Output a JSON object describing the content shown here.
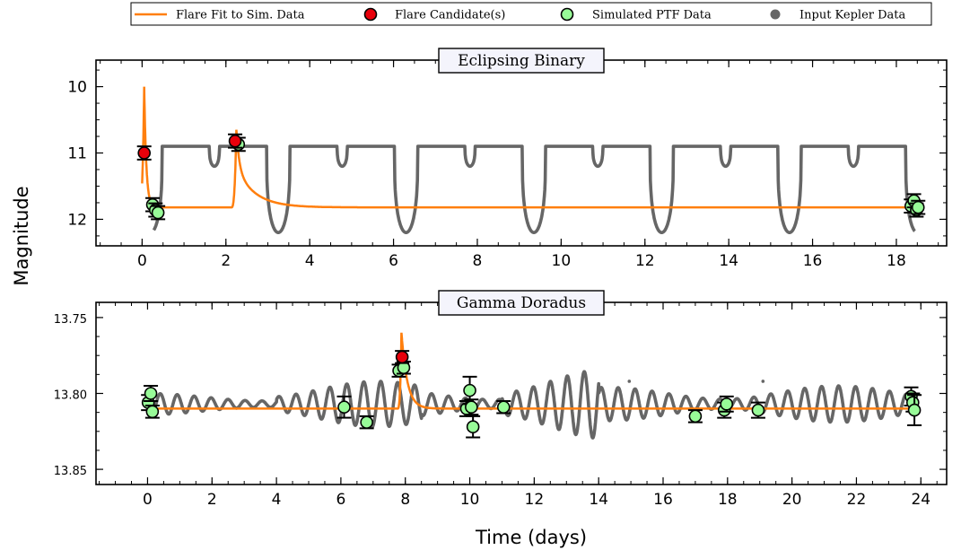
{
  "legend": {
    "items": [
      {
        "label": "Flare Fit to Sim. Data",
        "kind": "line",
        "color": "#ff7f0e"
      },
      {
        "label": "Flare Candidate(s)",
        "kind": "marker",
        "color": "#e8000b"
      },
      {
        "label": "Simulated PTF Data",
        "kind": "marker",
        "color": "#98fb98"
      },
      {
        "label": "Input Kepler Data",
        "kind": "dot",
        "color": "#666666"
      }
    ]
  },
  "colors": {
    "kepler": "#666666",
    "fit": "#ff7f0e",
    "candidate": "#e8000b",
    "ptf": "#98fb98",
    "errorbar": "#000000"
  },
  "shared": {
    "xlabel": "Time (days)",
    "ylabel": "Magnitude"
  },
  "chart_data": [
    {
      "type": "line",
      "title": "Eclipsing Binary",
      "ylim": [
        12.4,
        9.6
      ],
      "xlim": [
        -1.1,
        19.2
      ],
      "xticks": [
        0,
        2,
        4,
        6,
        8,
        10,
        12,
        14,
        16,
        18
      ],
      "xtick_labels": [
        "0",
        "2",
        "4",
        "6",
        "8",
        "10",
        "12",
        "14",
        "16",
        "18"
      ],
      "yticks": [
        10,
        11,
        12
      ],
      "ytick_labels": [
        "10",
        "11",
        "12"
      ],
      "kepler": {
        "baseline": 10.9,
        "period": 3.05,
        "first_primary": 3.25,
        "primary_depth": 12.2,
        "secondary_depth": 11.2,
        "primary_half_width": 0.28,
        "secondary_half_width": 0.12
      },
      "fit": {
        "quiescent": 11.82,
        "flares": [
          {
            "t_peak": 0.05,
            "peak_mag": 10.0,
            "decay_days": 0.05
          },
          {
            "t_peak": 2.25,
            "peak_mag": 10.65,
            "decay_days": 0.45
          }
        ]
      },
      "ptf_points": [
        {
          "t": 0.25,
          "mag": 11.78,
          "err": 0.1
        },
        {
          "t": 0.32,
          "mag": 11.86,
          "err": 0.1
        },
        {
          "t": 0.38,
          "mag": 11.9,
          "err": 0.1
        },
        {
          "t": 2.3,
          "mag": 10.87,
          "err": 0.1
        },
        {
          "t": 18.35,
          "mag": 11.8,
          "err": 0.1
        },
        {
          "t": 18.42,
          "mag": 11.72,
          "err": 0.1
        },
        {
          "t": 18.48,
          "mag": 11.86,
          "err": 0.1
        },
        {
          "t": 18.52,
          "mag": 11.82,
          "err": 0.1
        }
      ],
      "flare_candidates": [
        {
          "t": 0.05,
          "mag": 11.0,
          "err": 0.1
        },
        {
          "t": 2.22,
          "mag": 10.82,
          "err": 0.1
        }
      ]
    },
    {
      "type": "line",
      "title": "Gamma Doradus",
      "ylim": [
        13.86,
        13.74
      ],
      "xlim": [
        -1.6,
        24.8
      ],
      "xticks": [
        0,
        2,
        4,
        6,
        8,
        10,
        12,
        14,
        16,
        18,
        20,
        22,
        24
      ],
      "xtick_labels": [
        "0",
        "2",
        "4",
        "6",
        "8",
        "10",
        "12",
        "14",
        "16",
        "18",
        "20",
        "22",
        "24"
      ],
      "yticks": [
        13.75,
        13.8,
        13.85
      ],
      "ytick_labels": [
        "13.75",
        "13.80",
        "13.85"
      ],
      "kepler": {
        "mean": 13.807,
        "segments": [
          {
            "t0": 0.0,
            "t1": 4.0,
            "amp": 0.007
          },
          {
            "t0": 4.0,
            "t1": 8.5,
            "amp": 0.015
          },
          {
            "t0": 8.5,
            "t1": 11.0,
            "amp": 0.01
          },
          {
            "t0": 11.0,
            "t1": 14.0,
            "amp": 0.023
          },
          {
            "t0": 14.0,
            "t1": 19.0,
            "amp": 0.011
          },
          {
            "t0": 19.0,
            "t1": 23.8,
            "amp": 0.012
          }
        ],
        "freq_a": 1.9,
        "freq_b": 1.76
      },
      "fit": {
        "quiescent": 13.81,
        "flares": [
          {
            "t_peak": 7.88,
            "peak_mag": 13.76,
            "decay_days": 0.18
          }
        ]
      },
      "ptf_points": [
        {
          "t": 0.02,
          "mag": 13.806,
          "err": 0.005
        },
        {
          "t": 0.1,
          "mag": 13.8,
          "err": 0.005
        },
        {
          "t": 0.15,
          "mag": 13.812,
          "err": 0.004
        },
        {
          "t": 6.1,
          "mag": 13.809,
          "err": 0.007
        },
        {
          "t": 6.8,
          "mag": 13.819,
          "err": 0.004
        },
        {
          "t": 7.8,
          "mag": 13.785,
          "err": 0.004
        },
        {
          "t": 7.95,
          "mag": 13.783,
          "err": 0.004
        },
        {
          "t": 9.9,
          "mag": 13.81,
          "err": 0.005
        },
        {
          "t": 10.0,
          "mag": 13.798,
          "err": 0.009
        },
        {
          "t": 10.05,
          "mag": 13.809,
          "err": 0.005
        },
        {
          "t": 10.1,
          "mag": 13.822,
          "err": 0.007
        },
        {
          "t": 11.05,
          "mag": 13.809,
          "err": 0.004
        },
        {
          "t": 17.0,
          "mag": 13.815,
          "err": 0.004
        },
        {
          "t": 17.9,
          "mag": 13.811,
          "err": 0.005
        },
        {
          "t": 17.97,
          "mag": 13.807,
          "err": 0.005
        },
        {
          "t": 18.95,
          "mag": 13.811,
          "err": 0.005
        },
        {
          "t": 23.7,
          "mag": 13.802,
          "err": 0.006
        },
        {
          "t": 23.75,
          "mag": 13.806,
          "err": 0.006
        },
        {
          "t": 23.8,
          "mag": 13.811,
          "err": 0.01
        }
      ],
      "flare_candidates": [
        {
          "t": 7.9,
          "mag": 13.776,
          "err": 0.004
        }
      ],
      "stray_kepler_dots": [
        {
          "t": 14.95,
          "mag": 13.792
        },
        {
          "t": 19.1,
          "mag": 13.792
        }
      ]
    }
  ]
}
